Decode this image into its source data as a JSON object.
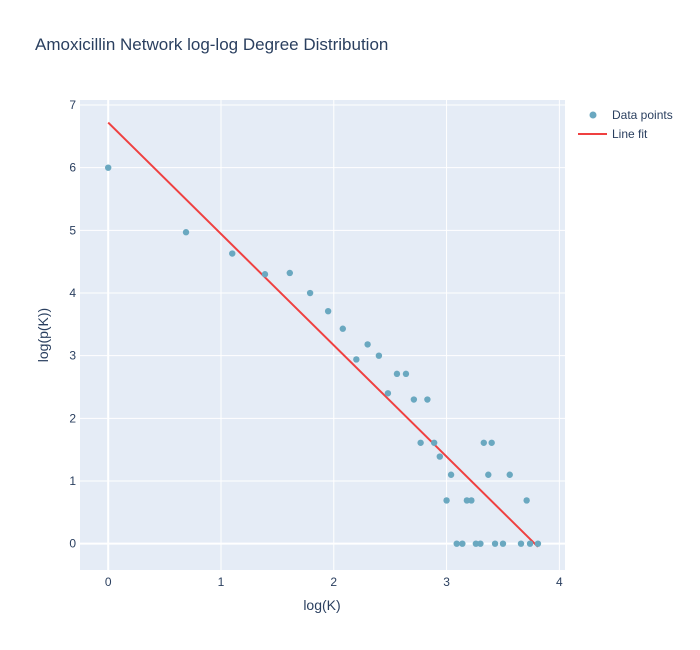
{
  "chart_data": {
    "type": "scatter",
    "title": "Amoxicillin Network log-log Degree Distribution",
    "xlabel": "log(K)",
    "ylabel": "log(p(K))",
    "xlim": [
      -0.25,
      4.05
    ],
    "ylim": [
      -0.42,
      7.08
    ],
    "x_ticks": [
      0,
      1,
      2,
      3,
      4
    ],
    "y_ticks": [
      0,
      1,
      2,
      3,
      4,
      5,
      6,
      7
    ],
    "grid": true,
    "legend_placement": "top-right",
    "colors": {
      "points": "#6aa8c0",
      "line": "#ef4040",
      "plot_background": "#e5ecf6",
      "grid": "#ffffff",
      "text": "#2a3f5f"
    },
    "series": [
      {
        "name": "Data points",
        "kind": "markers",
        "points": [
          [
            0.0,
            6.0
          ],
          [
            0.69,
            4.97
          ],
          [
            1.1,
            4.63
          ],
          [
            1.39,
            4.3
          ],
          [
            1.61,
            4.32
          ],
          [
            1.79,
            4.0
          ],
          [
            1.95,
            3.71
          ],
          [
            2.08,
            3.43
          ],
          [
            2.2,
            2.94
          ],
          [
            2.3,
            3.18
          ],
          [
            2.4,
            3.0
          ],
          [
            2.48,
            2.4
          ],
          [
            2.56,
            2.71
          ],
          [
            2.64,
            2.71
          ],
          [
            2.71,
            2.3
          ],
          [
            2.77,
            1.61
          ],
          [
            2.83,
            2.3
          ],
          [
            2.89,
            1.61
          ],
          [
            2.94,
            1.39
          ],
          [
            3.0,
            0.69
          ],
          [
            3.04,
            1.1
          ],
          [
            3.09,
            0.0
          ],
          [
            3.14,
            0.0
          ],
          [
            3.18,
            0.69
          ],
          [
            3.22,
            0.69
          ],
          [
            3.26,
            0.0
          ],
          [
            3.3,
            0.0
          ],
          [
            3.33,
            1.61
          ],
          [
            3.37,
            1.1
          ],
          [
            3.4,
            1.61
          ],
          [
            3.43,
            0.0
          ],
          [
            3.5,
            0.0
          ],
          [
            3.56,
            1.1
          ],
          [
            3.66,
            0.0
          ],
          [
            3.71,
            0.69
          ],
          [
            3.74,
            0.0
          ],
          [
            3.81,
            0.0
          ]
        ]
      },
      {
        "name": "Line fit",
        "kind": "line",
        "points": [
          [
            0.0,
            6.72
          ],
          [
            3.81,
            -0.05
          ]
        ]
      }
    ]
  }
}
